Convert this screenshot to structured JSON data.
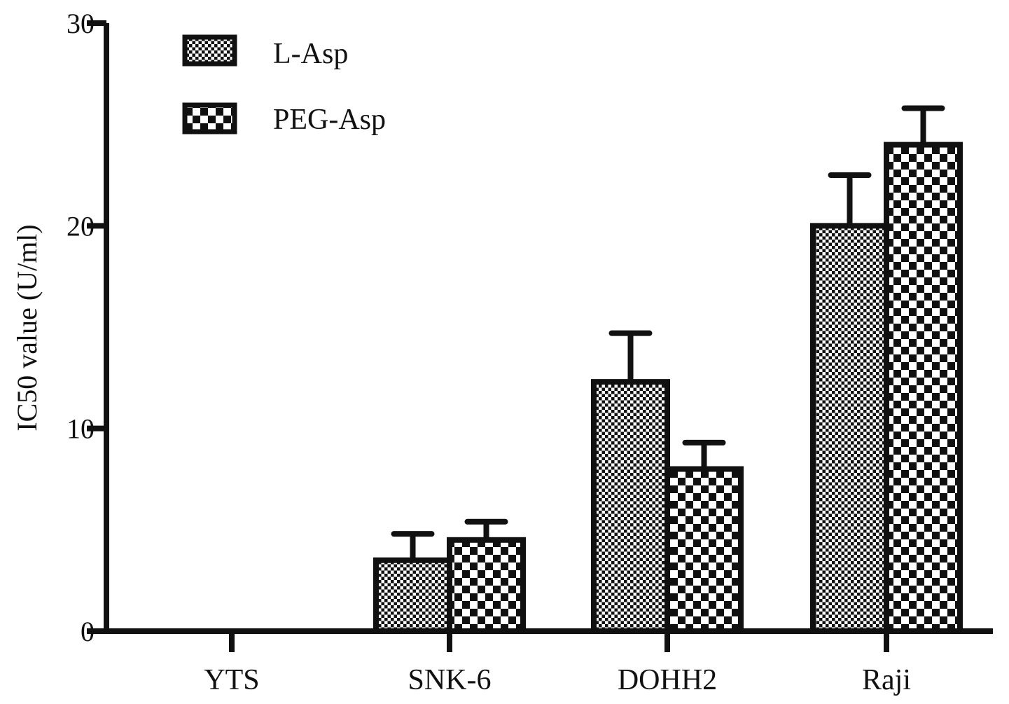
{
  "chart_data": {
    "type": "bar",
    "title": "",
    "xlabel": "",
    "ylabel": "IC50 value (U/ml)",
    "ylim": [
      0,
      30
    ],
    "yticks": [
      0,
      10,
      20,
      30
    ],
    "categories": [
      "YTS",
      "SNK-6",
      "DOHH2",
      "Raji"
    ],
    "series": [
      {
        "name": "L-Asp",
        "values": [
          0,
          3.5,
          12.3,
          20.0
        ],
        "errors": [
          0,
          1.3,
          2.4,
          2.5
        ],
        "pattern": "fine-checker"
      },
      {
        "name": "PEG-Asp",
        "values": [
          0,
          4.5,
          8.0,
          24.0
        ],
        "errors": [
          0,
          0.9,
          1.3,
          1.8
        ],
        "pattern": "coarse-checker"
      }
    ],
    "legend_position": "top-left",
    "grid": false,
    "colors": {
      "ink": "#111111",
      "background": "#ffffff"
    }
  }
}
